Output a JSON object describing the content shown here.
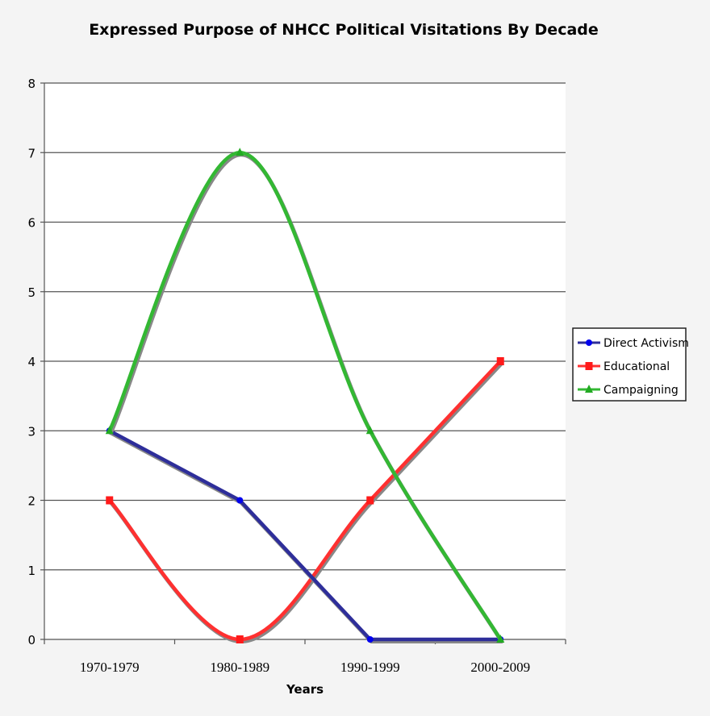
{
  "chart_data": {
    "type": "line",
    "title": "Expressed Purpose of NHCC Political Visitations By Decade",
    "xlabel": "Years",
    "ylabel": "",
    "categories": [
      "1970-1979",
      "1980-1989",
      "1990-1999",
      "2000-2009"
    ],
    "series": [
      {
        "name": "Direct Activism",
        "values": [
          3,
          2,
          0,
          0
        ],
        "color": "#2e2e9a",
        "marker": "circle",
        "smooth": false
      },
      {
        "name": "Educational",
        "values": [
          2,
          0,
          2,
          4
        ],
        "color": "#ff3030",
        "marker": "square",
        "smooth": true
      },
      {
        "name": "Campaigning",
        "values": [
          3,
          7,
          3,
          0
        ],
        "color": "#33b833",
        "marker": "triangle",
        "smooth": true
      }
    ],
    "ylim": [
      0,
      8
    ],
    "yticks": [
      0,
      1,
      2,
      3,
      4,
      5,
      6,
      7,
      8
    ],
    "grid": true,
    "legend_position": "right"
  }
}
